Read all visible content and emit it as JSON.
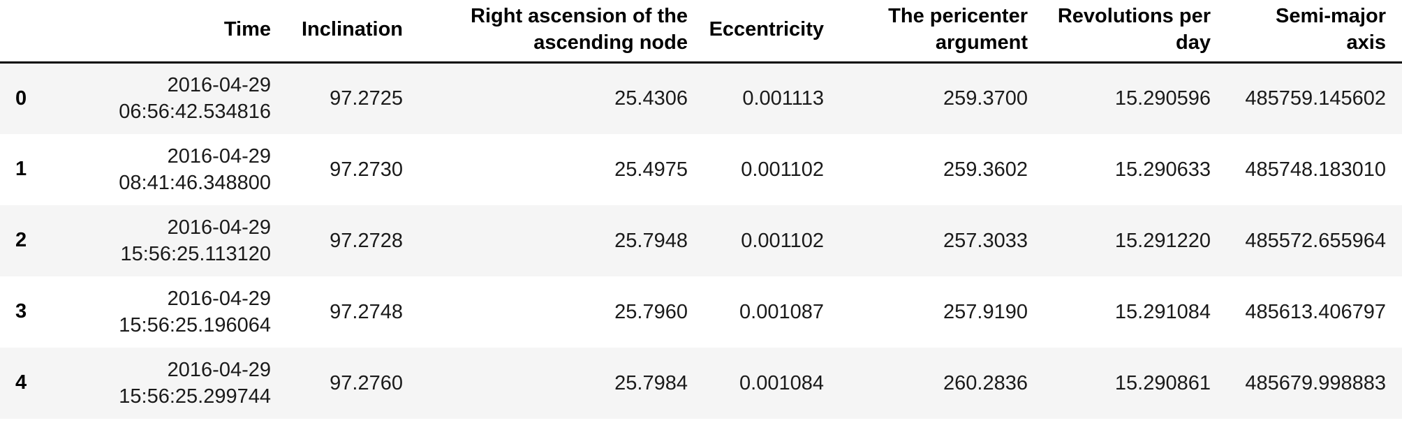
{
  "table": {
    "index_header": "",
    "columns": [
      {
        "label": "Time"
      },
      {
        "label": "Inclination"
      },
      {
        "label": "Right ascension of the\nascending node"
      },
      {
        "label": "Eccentricity"
      },
      {
        "label": "The pericenter\nargument"
      },
      {
        "label": "Revolutions per\nday"
      },
      {
        "label": "Semi-major\naxis"
      }
    ],
    "rows": [
      {
        "index": "0",
        "cells": [
          "2016-04-29\n06:56:42.534816",
          "97.2725",
          "25.4306",
          "0.001113",
          "259.3700",
          "15.290596",
          "485759.145602"
        ]
      },
      {
        "index": "1",
        "cells": [
          "2016-04-29\n08:41:46.348800",
          "97.2730",
          "25.4975",
          "0.001102",
          "259.3602",
          "15.290633",
          "485748.183010"
        ]
      },
      {
        "index": "2",
        "cells": [
          "2016-04-29\n15:56:25.113120",
          "97.2728",
          "25.7948",
          "0.001102",
          "257.3033",
          "15.291220",
          "485572.655964"
        ]
      },
      {
        "index": "3",
        "cells": [
          "2016-04-29\n15:56:25.196064",
          "97.2748",
          "25.7960",
          "0.001087",
          "257.9190",
          "15.291084",
          "485613.406797"
        ]
      },
      {
        "index": "4",
        "cells": [
          "2016-04-29\n15:56:25.299744",
          "97.2760",
          "25.7984",
          "0.001084",
          "260.2836",
          "15.290861",
          "485679.998883"
        ]
      }
    ],
    "colors": {
      "stripe": "#f5f5f5",
      "header_border": "#000000",
      "text": "#1a1a1a"
    }
  }
}
